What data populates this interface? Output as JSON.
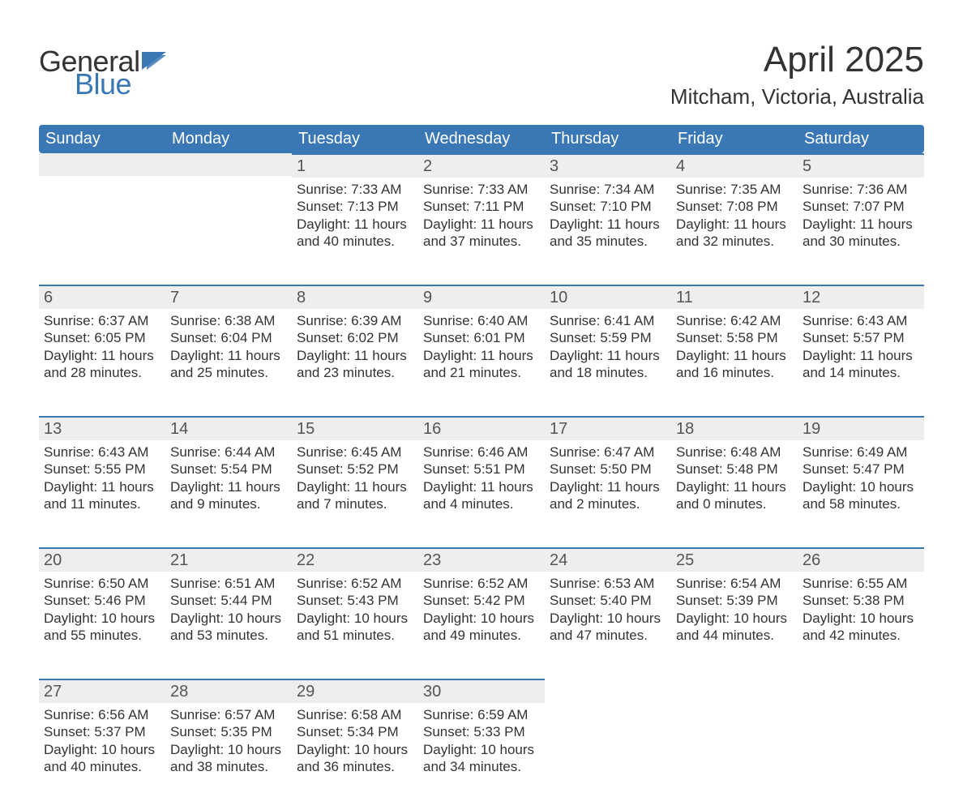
{
  "brand": {
    "word1": "General",
    "word2": "Blue",
    "text_color": "#333333",
    "accent_color": "#3a78b5"
  },
  "title": "April 2025",
  "location": "Mitcham, Victoria, Australia",
  "style": {
    "header_bg": "#3a78b5",
    "header_text": "#ffffff",
    "daynum_bg": "#eeeeee",
    "daynum_border_top": "#3a78b5",
    "body_text": "#333333",
    "page_bg": "#ffffff",
    "font_family": "Helvetica Neue, Arial, sans-serif",
    "title_fontsize_pt": 33,
    "location_fontsize_pt": 20,
    "weekday_fontsize_pt": 15,
    "daynum_fontsize_pt": 15,
    "body_fontsize_pt": 13
  },
  "weekdays": [
    "Sunday",
    "Monday",
    "Tuesday",
    "Wednesday",
    "Thursday",
    "Friday",
    "Saturday"
  ],
  "weeks": [
    [
      null,
      null,
      {
        "n": "1",
        "sunrise": "Sunrise: 7:33 AM",
        "sunset": "Sunset: 7:13 PM",
        "day1": "Daylight: 11 hours",
        "day2": "and 40 minutes."
      },
      {
        "n": "2",
        "sunrise": "Sunrise: 7:33 AM",
        "sunset": "Sunset: 7:11 PM",
        "day1": "Daylight: 11 hours",
        "day2": "and 37 minutes."
      },
      {
        "n": "3",
        "sunrise": "Sunrise: 7:34 AM",
        "sunset": "Sunset: 7:10 PM",
        "day1": "Daylight: 11 hours",
        "day2": "and 35 minutes."
      },
      {
        "n": "4",
        "sunrise": "Sunrise: 7:35 AM",
        "sunset": "Sunset: 7:08 PM",
        "day1": "Daylight: 11 hours",
        "day2": "and 32 minutes."
      },
      {
        "n": "5",
        "sunrise": "Sunrise: 7:36 AM",
        "sunset": "Sunset: 7:07 PM",
        "day1": "Daylight: 11 hours",
        "day2": "and 30 minutes."
      }
    ],
    [
      {
        "n": "6",
        "sunrise": "Sunrise: 6:37 AM",
        "sunset": "Sunset: 6:05 PM",
        "day1": "Daylight: 11 hours",
        "day2": "and 28 minutes."
      },
      {
        "n": "7",
        "sunrise": "Sunrise: 6:38 AM",
        "sunset": "Sunset: 6:04 PM",
        "day1": "Daylight: 11 hours",
        "day2": "and 25 minutes."
      },
      {
        "n": "8",
        "sunrise": "Sunrise: 6:39 AM",
        "sunset": "Sunset: 6:02 PM",
        "day1": "Daylight: 11 hours",
        "day2": "and 23 minutes."
      },
      {
        "n": "9",
        "sunrise": "Sunrise: 6:40 AM",
        "sunset": "Sunset: 6:01 PM",
        "day1": "Daylight: 11 hours",
        "day2": "and 21 minutes."
      },
      {
        "n": "10",
        "sunrise": "Sunrise: 6:41 AM",
        "sunset": "Sunset: 5:59 PM",
        "day1": "Daylight: 11 hours",
        "day2": "and 18 minutes."
      },
      {
        "n": "11",
        "sunrise": "Sunrise: 6:42 AM",
        "sunset": "Sunset: 5:58 PM",
        "day1": "Daylight: 11 hours",
        "day2": "and 16 minutes."
      },
      {
        "n": "12",
        "sunrise": "Sunrise: 6:43 AM",
        "sunset": "Sunset: 5:57 PM",
        "day1": "Daylight: 11 hours",
        "day2": "and 14 minutes."
      }
    ],
    [
      {
        "n": "13",
        "sunrise": "Sunrise: 6:43 AM",
        "sunset": "Sunset: 5:55 PM",
        "day1": "Daylight: 11 hours",
        "day2": "and 11 minutes."
      },
      {
        "n": "14",
        "sunrise": "Sunrise: 6:44 AM",
        "sunset": "Sunset: 5:54 PM",
        "day1": "Daylight: 11 hours",
        "day2": "and 9 minutes."
      },
      {
        "n": "15",
        "sunrise": "Sunrise: 6:45 AM",
        "sunset": "Sunset: 5:52 PM",
        "day1": "Daylight: 11 hours",
        "day2": "and 7 minutes."
      },
      {
        "n": "16",
        "sunrise": "Sunrise: 6:46 AM",
        "sunset": "Sunset: 5:51 PM",
        "day1": "Daylight: 11 hours",
        "day2": "and 4 minutes."
      },
      {
        "n": "17",
        "sunrise": "Sunrise: 6:47 AM",
        "sunset": "Sunset: 5:50 PM",
        "day1": "Daylight: 11 hours",
        "day2": "and 2 minutes."
      },
      {
        "n": "18",
        "sunrise": "Sunrise: 6:48 AM",
        "sunset": "Sunset: 5:48 PM",
        "day1": "Daylight: 11 hours",
        "day2": "and 0 minutes."
      },
      {
        "n": "19",
        "sunrise": "Sunrise: 6:49 AM",
        "sunset": "Sunset: 5:47 PM",
        "day1": "Daylight: 10 hours",
        "day2": "and 58 minutes."
      }
    ],
    [
      {
        "n": "20",
        "sunrise": "Sunrise: 6:50 AM",
        "sunset": "Sunset: 5:46 PM",
        "day1": "Daylight: 10 hours",
        "day2": "and 55 minutes."
      },
      {
        "n": "21",
        "sunrise": "Sunrise: 6:51 AM",
        "sunset": "Sunset: 5:44 PM",
        "day1": "Daylight: 10 hours",
        "day2": "and 53 minutes."
      },
      {
        "n": "22",
        "sunrise": "Sunrise: 6:52 AM",
        "sunset": "Sunset: 5:43 PM",
        "day1": "Daylight: 10 hours",
        "day2": "and 51 minutes."
      },
      {
        "n": "23",
        "sunrise": "Sunrise: 6:52 AM",
        "sunset": "Sunset: 5:42 PM",
        "day1": "Daylight: 10 hours",
        "day2": "and 49 minutes."
      },
      {
        "n": "24",
        "sunrise": "Sunrise: 6:53 AM",
        "sunset": "Sunset: 5:40 PM",
        "day1": "Daylight: 10 hours",
        "day2": "and 47 minutes."
      },
      {
        "n": "25",
        "sunrise": "Sunrise: 6:54 AM",
        "sunset": "Sunset: 5:39 PM",
        "day1": "Daylight: 10 hours",
        "day2": "and 44 minutes."
      },
      {
        "n": "26",
        "sunrise": "Sunrise: 6:55 AM",
        "sunset": "Sunset: 5:38 PM",
        "day1": "Daylight: 10 hours",
        "day2": "and 42 minutes."
      }
    ],
    [
      {
        "n": "27",
        "sunrise": "Sunrise: 6:56 AM",
        "sunset": "Sunset: 5:37 PM",
        "day1": "Daylight: 10 hours",
        "day2": "and 40 minutes."
      },
      {
        "n": "28",
        "sunrise": "Sunrise: 6:57 AM",
        "sunset": "Sunset: 5:35 PM",
        "day1": "Daylight: 10 hours",
        "day2": "and 38 minutes."
      },
      {
        "n": "29",
        "sunrise": "Sunrise: 6:58 AM",
        "sunset": "Sunset: 5:34 PM",
        "day1": "Daylight: 10 hours",
        "day2": "and 36 minutes."
      },
      {
        "n": "30",
        "sunrise": "Sunrise: 6:59 AM",
        "sunset": "Sunset: 5:33 PM",
        "day1": "Daylight: 10 hours",
        "day2": "and 34 minutes."
      },
      null,
      null,
      null
    ]
  ]
}
